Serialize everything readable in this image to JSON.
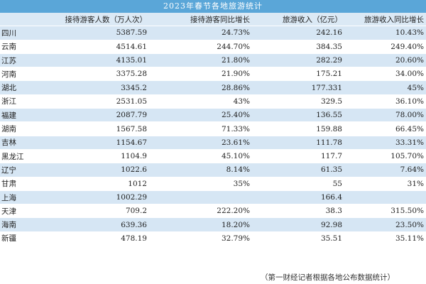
{
  "title": "2023年春节各地旅游统计",
  "headers": [
    "",
    "接待游客人数（万人次）",
    "接待游客同比增长",
    "旅游收入（亿元）",
    "旅游收入同比增长"
  ],
  "rows": [
    {
      "region": "四川",
      "visitors": "5387.59",
      "visitors_growth": "24.73%",
      "revenue": "242.16",
      "revenue_growth": "10.43%"
    },
    {
      "region": "云南",
      "visitors": "4514.61",
      "visitors_growth": "244.70%",
      "revenue": "384.35",
      "revenue_growth": "249.40%"
    },
    {
      "region": "江苏",
      "visitors": "4135.01",
      "visitors_growth": "21.80%",
      "revenue": "282.29",
      "revenue_growth": "20.60%"
    },
    {
      "region": "河南",
      "visitors": "3375.28",
      "visitors_growth": "21.90%",
      "revenue": "175.21",
      "revenue_growth": "34.00%"
    },
    {
      "region": "湖北",
      "visitors": "3345.2",
      "visitors_growth": "28.86%",
      "revenue": "177.331",
      "revenue_growth": "45%"
    },
    {
      "region": "浙江",
      "visitors": "2531.05",
      "visitors_growth": "43%",
      "revenue": "329.5",
      "revenue_growth": "36.10%"
    },
    {
      "region": "福建",
      "visitors": "2087.79",
      "visitors_growth": "25.40%",
      "revenue": "136.55",
      "revenue_growth": "78.00%"
    },
    {
      "region": "湖南",
      "visitors": "1567.58",
      "visitors_growth": "71.33%",
      "revenue": "159.88",
      "revenue_growth": "66.45%"
    },
    {
      "region": "吉林",
      "visitors": "1154.67",
      "visitors_growth": "23.61%",
      "revenue": "111.78",
      "revenue_growth": "33.31%"
    },
    {
      "region": "黑龙江",
      "visitors": "1104.9",
      "visitors_growth": "45.10%",
      "revenue": "117.7",
      "revenue_growth": "105.70%"
    },
    {
      "region": "辽宁",
      "visitors": "1022.6",
      "visitors_growth": "8.14%",
      "revenue": "61.35",
      "revenue_growth": "7.64%"
    },
    {
      "region": "甘肃",
      "visitors": "1012",
      "visitors_growth": "35%",
      "revenue": "55",
      "revenue_growth": "31%"
    },
    {
      "region": "上海",
      "visitors": "1002.29",
      "visitors_growth": "",
      "revenue": "166.4",
      "revenue_growth": ""
    },
    {
      "region": "天津",
      "visitors": "709.2",
      "visitors_growth": "222.20%",
      "revenue": "38.3",
      "revenue_growth": "315.50%"
    },
    {
      "region": "海南",
      "visitors": "639.36",
      "visitors_growth": "18.20%",
      "revenue": "92.98",
      "revenue_growth": "23.50%"
    },
    {
      "region": "新疆",
      "visitors": "478.19",
      "visitors_growth": "32.79%",
      "revenue": "35.51",
      "revenue_growth": "35.11%"
    }
  ],
  "source": "（第一财经记者根据各地公布数据统计）"
}
